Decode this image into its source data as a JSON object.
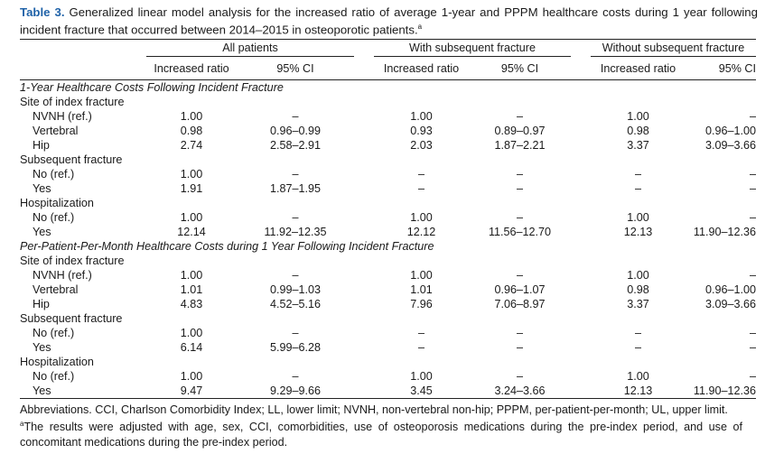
{
  "caption": {
    "label": "Table 3.",
    "text": "Generalized linear model analysis for the increased ratio of average 1-year and PPPM healthcare costs during 1 year following incident fracture that occurred between 2014–2015 in osteoporotic patients.",
    "sup": "a"
  },
  "groups": [
    "All patients",
    "With subsequent fracture",
    "Without subsequent fracture"
  ],
  "subheaders": [
    "Increased ratio",
    "95% CI",
    "Increased ratio",
    "95% CI",
    "Increased ratio",
    "95% CI"
  ],
  "sections": [
    {
      "title": "1-Year Healthcare Costs Following Incident Fracture",
      "blocks": [
        {
          "name": "Site of index fracture",
          "rows": [
            {
              "label": "NVNH (ref.)",
              "cells": [
                "1.00",
                "–",
                "1.00",
                "–",
                "1.00",
                "–"
              ]
            },
            {
              "label": "Vertebral",
              "cells": [
                "0.98",
                "0.96–0.99",
                "0.93",
                "0.89–0.97",
                "0.98",
                "0.96–1.00"
              ]
            },
            {
              "label": "Hip",
              "cells": [
                "2.74",
                "2.58–2.91",
                "2.03",
                "1.87–2.21",
                "3.37",
                "3.09–3.66"
              ]
            }
          ]
        },
        {
          "name": "Subsequent fracture",
          "rows": [
            {
              "label": "No (ref.)",
              "cells": [
                "1.00",
                "–",
                "–",
                "–",
                "–",
                "–"
              ]
            },
            {
              "label": "Yes",
              "cells": [
                "1.91",
                "1.87–1.95",
                "–",
                "–",
                "–",
                "–"
              ]
            }
          ]
        },
        {
          "name": "Hospitalization",
          "rows": [
            {
              "label": "No (ref.)",
              "cells": [
                "1.00",
                "–",
                "1.00",
                "–",
                "1.00",
                "–"
              ]
            },
            {
              "label": "Yes",
              "cells": [
                "12.14",
                "11.92–12.35",
                "12.12",
                "11.56–12.70",
                "12.13",
                "11.90–12.36"
              ]
            }
          ]
        }
      ]
    },
    {
      "title": "Per-Patient-Per-Month Healthcare Costs during 1 Year Following Incident Fracture",
      "blocks": [
        {
          "name": "Site of index fracture",
          "rows": [
            {
              "label": "NVNH (ref.)",
              "cells": [
                "1.00",
                "–",
                "1.00",
                "–",
                "1.00",
                "–"
              ]
            },
            {
              "label": "Vertebral",
              "cells": [
                "1.01",
                "0.99–1.03",
                "1.01",
                "0.96–1.07",
                "0.98",
                "0.96–1.00"
              ]
            },
            {
              "label": "Hip",
              "cells": [
                "4.83",
                "4.52–5.16",
                "7.96",
                "7.06–8.97",
                "3.37",
                "3.09–3.66"
              ]
            }
          ]
        },
        {
          "name": "Subsequent fracture",
          "rows": [
            {
              "label": "No (ref.)",
              "cells": [
                "1.00",
                "–",
                "–",
                "–",
                "–",
                "–"
              ]
            },
            {
              "label": "Yes",
              "cells": [
                "6.14",
                "5.99–6.28",
                "–",
                "–",
                "–",
                "–"
              ]
            }
          ]
        },
        {
          "name": "Hospitalization",
          "rows": [
            {
              "label": "No (ref.)",
              "cells": [
                "1.00",
                "–",
                "1.00",
                "–",
                "1.00",
                "–"
              ]
            },
            {
              "label": "Yes",
              "cells": [
                "9.47",
                "9.29–9.66",
                "3.45",
                "3.24–3.66",
                "12.13",
                "11.90–12.36"
              ]
            }
          ]
        }
      ]
    }
  ],
  "notes": {
    "abbreviations": "Abbreviations. CCI, Charlson Comorbidity Index; LL, lower limit; NVNH, non-vertebral non-hip; PPPM, per-patient-per-month; UL, upper limit.",
    "footnote_mark": "a",
    "footnote": "The results were adjusted with age, sex, CCI, comorbidities, use of osteoporosis medications during the pre-index period, and use of concomitant medications during the pre-index period."
  },
  "colors": {
    "label_blue": "#1f62a8",
    "rule": "#222222",
    "text": "#1a1a1a"
  }
}
